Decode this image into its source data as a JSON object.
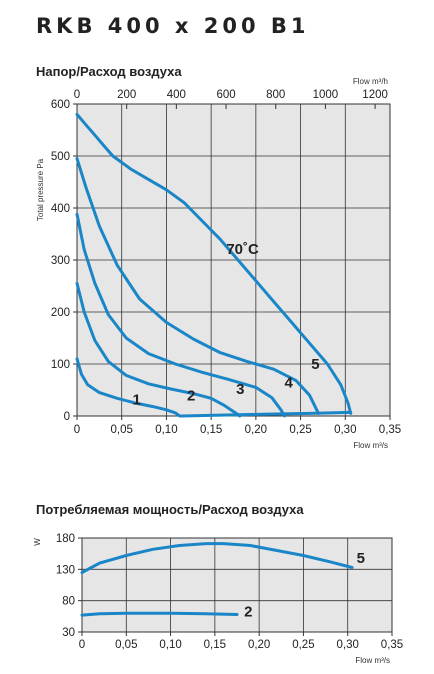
{
  "title": "RKB 400 x 200 B1",
  "chart_data": [
    {
      "type": "line",
      "title": "Напор/Расход воздуха",
      "xlabel": "Flow m³/s",
      "ylabel": "Total pressure Pa",
      "x2label": "Flow m³/h",
      "xlim": [
        0,
        0.35
      ],
      "ylim": [
        0,
        600
      ],
      "x2lim": [
        0,
        1260
      ],
      "xticks": [
        "0",
        "0,05",
        "0,10",
        "0,15",
        "0,20",
        "0,25",
        "0,30",
        "0,35"
      ],
      "yticks": [
        "0",
        "100",
        "200",
        "300",
        "400",
        "500",
        "600"
      ],
      "x2ticks": [
        "0",
        "200",
        "400",
        "600",
        "800",
        "1000",
        "1200"
      ],
      "grid": true,
      "annotations": [
        "70˚C"
      ],
      "series": [
        {
          "name": "1",
          "points": [
            [
              0,
              110
            ],
            [
              0.005,
              80
            ],
            [
              0.012,
              60
            ],
            [
              0.025,
              45
            ],
            [
              0.045,
              34
            ],
            [
              0.065,
              25
            ],
            [
              0.085,
              18
            ],
            [
              0.1,
              12
            ],
            [
              0.11,
              6
            ],
            [
              0.115,
              0
            ]
          ]
        },
        {
          "name": "2",
          "points": [
            [
              0,
              255
            ],
            [
              0.008,
              200
            ],
            [
              0.02,
              145
            ],
            [
              0.035,
              105
            ],
            [
              0.055,
              78
            ],
            [
              0.08,
              62
            ],
            [
              0.105,
              52
            ],
            [
              0.13,
              43
            ],
            [
              0.15,
              34
            ],
            [
              0.165,
              20
            ],
            [
              0.178,
              5
            ],
            [
              0.182,
              0
            ]
          ]
        },
        {
          "name": "3",
          "points": [
            [
              0,
              388
            ],
            [
              0.008,
              320
            ],
            [
              0.02,
              255
            ],
            [
              0.035,
              195
            ],
            [
              0.055,
              150
            ],
            [
              0.08,
              120
            ],
            [
              0.11,
              100
            ],
            [
              0.14,
              84
            ],
            [
              0.17,
              70
            ],
            [
              0.2,
              55
            ],
            [
              0.218,
              35
            ],
            [
              0.228,
              12
            ],
            [
              0.232,
              0
            ]
          ]
        },
        {
          "name": "4",
          "points": [
            [
              0,
              495
            ],
            [
              0.01,
              440
            ],
            [
              0.025,
              365
            ],
            [
              0.045,
              290
            ],
            [
              0.07,
              225
            ],
            [
              0.1,
              180
            ],
            [
              0.13,
              148
            ],
            [
              0.16,
              122
            ],
            [
              0.19,
              105
            ],
            [
              0.22,
              90
            ],
            [
              0.245,
              68
            ],
            [
              0.26,
              40
            ],
            [
              0.27,
              5
            ]
          ]
        },
        {
          "name": "5",
          "points": [
            [
              0,
              580
            ],
            [
              0.01,
              560
            ],
            [
              0.02,
              540
            ],
            [
              0.03,
              520
            ],
            [
              0.04,
              500
            ],
            [
              0.06,
              475
            ],
            [
              0.08,
              455
            ],
            [
              0.1,
              435
            ],
            [
              0.12,
              410
            ],
            [
              0.14,
              375
            ],
            [
              0.16,
              340
            ],
            [
              0.18,
              300
            ],
            [
              0.2,
              260
            ],
            [
              0.22,
              220
            ],
            [
              0.24,
              180
            ],
            [
              0.26,
              140
            ],
            [
              0.28,
              100
            ],
            [
              0.295,
              60
            ],
            [
              0.303,
              25
            ],
            [
              0.306,
              5
            ]
          ]
        },
        {
          "name": "70˚C",
          "points": [
            [
              0.117,
              0
            ],
            [
              0.2,
              3
            ],
            [
              0.26,
              5
            ],
            [
              0.306,
              7
            ]
          ]
        }
      ]
    },
    {
      "type": "line",
      "title": "Потребляемая мощность/Расход воздуха",
      "xlabel": "Flow m³/s",
      "ylabel": "W",
      "xlim": [
        0,
        0.35
      ],
      "ylim": [
        30,
        180
      ],
      "xticks": [
        "0",
        "0,05",
        "0,10",
        "0,15",
        "0,20",
        "0,25",
        "0,30",
        "0,35"
      ],
      "yticks": [
        "30",
        "80",
        "130",
        "180"
      ],
      "grid": true,
      "series": [
        {
          "name": "5",
          "points": [
            [
              0,
              125
            ],
            [
              0.02,
              140
            ],
            [
              0.05,
              152
            ],
            [
              0.08,
              162
            ],
            [
              0.11,
              168
            ],
            [
              0.14,
              171
            ],
            [
              0.16,
              171
            ],
            [
              0.19,
              168
            ],
            [
              0.22,
              160
            ],
            [
              0.25,
              152
            ],
            [
              0.28,
              142
            ],
            [
              0.305,
              133
            ]
          ]
        },
        {
          "name": "2",
          "points": [
            [
              0,
              57
            ],
            [
              0.02,
              59
            ],
            [
              0.05,
              60
            ],
            [
              0.1,
              60
            ],
            [
              0.14,
              59
            ],
            [
              0.175,
              58
            ]
          ]
        }
      ]
    }
  ]
}
